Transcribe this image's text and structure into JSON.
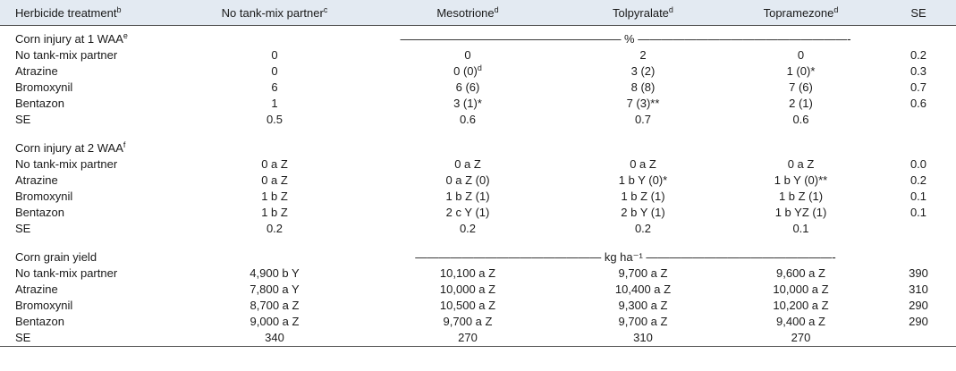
{
  "header": {
    "treatment": "Herbicide treatment",
    "treatment_sup": "b",
    "no_partner": "No tank-mix partner",
    "no_partner_sup": "c",
    "mesotrione": "Mesotrione",
    "mesotrione_sup": "d",
    "tolpyralate": "Tolpyralate",
    "tolpyralate_sup": "d",
    "topramezone": "Topramezone",
    "topramezone_sup": "d",
    "se": "SE"
  },
  "sections": [
    {
      "title": "Corn injury at 1  WAA",
      "title_sup": "e",
      "unit": "——————————————————— % ——————————————————-",
      "rows": [
        {
          "label": "No tank-mix partner",
          "cells": [
            "0",
            "0",
            "2",
            "0",
            "0.2"
          ]
        },
        {
          "label": "Atrazine",
          "cells": [
            "0",
            "0 (0)",
            "3 (2)",
            "1  (0)*",
            "0.3"
          ],
          "meso_sup": "d"
        },
        {
          "label": "Bromoxynil",
          "cells": [
            "6",
            "6 (6)",
            "8 (8)",
            "7 (6)",
            "0.7"
          ]
        },
        {
          "label": "Bentazon",
          "cells": [
            "1",
            "3 (1)*",
            "7 (3)**",
            "2 (1)",
            "0.6"
          ]
        },
        {
          "label": "SE",
          "cells": [
            "0.5",
            "0.6",
            "0.7",
            "0.6",
            ""
          ]
        }
      ]
    },
    {
      "title": "Corn injury at 2  WAA",
      "title_sup": "f",
      "unit": "",
      "rows": [
        {
          "label": "No tank-mix partner",
          "cells": [
            "0 a Z",
            "0 a Z",
            "0 a Z",
            "0 a Z",
            "0.0"
          ]
        },
        {
          "label": "Atrazine",
          "cells": [
            "0 a Z",
            "0 a Z (0)",
            "1 b Y (0)*",
            "1 b Y (0)**",
            "0.2"
          ]
        },
        {
          "label": "Bromoxynil",
          "cells": [
            "1 b Z",
            "1 b Z (1)",
            "1 b Z (1)",
            "1 b Z (1)",
            "0.1"
          ]
        },
        {
          "label": "Bentazon",
          "cells": [
            "1 b Z",
            "2 c Y (1)",
            "2 b Y (1)",
            "1 b YZ (1)",
            "0.1"
          ]
        },
        {
          "label": "SE",
          "cells": [
            "0.2",
            "0.2",
            "0.2",
            "0.1",
            ""
          ]
        }
      ]
    },
    {
      "title": "Corn grain yield",
      "title_sup": "",
      "unit": "———————————————— kg ha⁻¹ ————————————————-",
      "rows": [
        {
          "label": "No tank-mix partner",
          "cells": [
            "4,900 b Y",
            "10,100 a Z",
            "9,700 a Z",
            "9,600 a Z",
            "390"
          ]
        },
        {
          "label": "Atrazine",
          "cells": [
            "7,800 a Y",
            "10,000 a Z",
            "10,400 a Z",
            "10,000 a Z",
            "310"
          ]
        },
        {
          "label": "Bromoxynil",
          "cells": [
            "8,700 a Z",
            "10,500 a Z",
            "9,300 a Z",
            "10,200 a Z",
            "290"
          ]
        },
        {
          "label": "Bentazon",
          "cells": [
            "9,000 a Z",
            "9,700 a Z",
            "9,700 a Z",
            "9,400 a Z",
            "290"
          ]
        },
        {
          "label": "SE",
          "cells": [
            "340",
            "270",
            "310",
            "270",
            ""
          ]
        }
      ]
    }
  ]
}
